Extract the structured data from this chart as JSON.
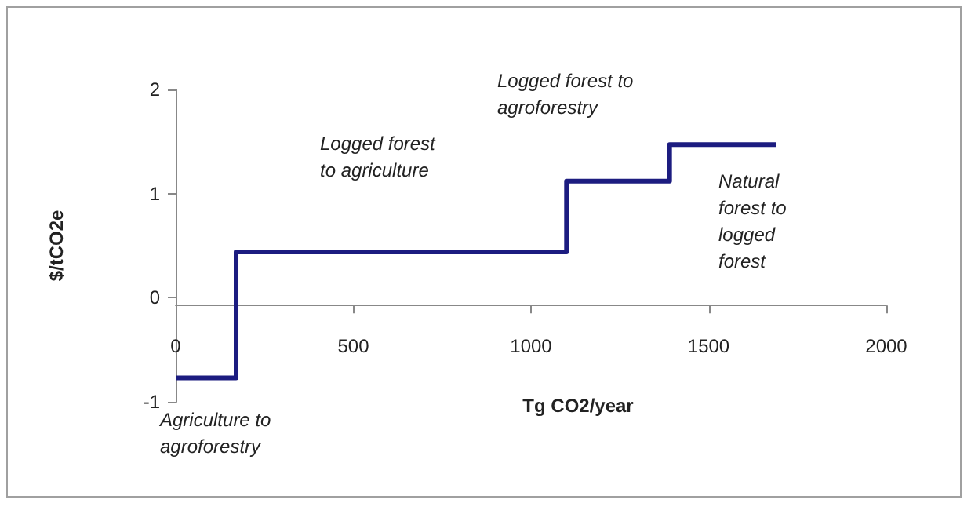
{
  "chart_data": {
    "type": "step",
    "xlabel": "Tg CO2/year",
    "ylabel": "$/tCO2e",
    "x": [
      0,
      170,
      1100,
      1390,
      1690
    ],
    "values": [
      -0.77,
      0.44,
      1.12,
      1.47,
      1.47
    ],
    "color": "#1c1c80",
    "xlim": [
      0,
      2000
    ],
    "xticks": [
      0,
      500,
      1000,
      1500,
      2000
    ],
    "ylim": [
      -1,
      2
    ],
    "yticks": [
      -1,
      0,
      1,
      2
    ],
    "marker": "none",
    "line_style": "solid",
    "annotations": [
      "Logged forest to agriculture",
      "Logged forest to agroforestry",
      "Natural forest to logged forest",
      "Agriculture to agroforestry"
    ]
  }
}
